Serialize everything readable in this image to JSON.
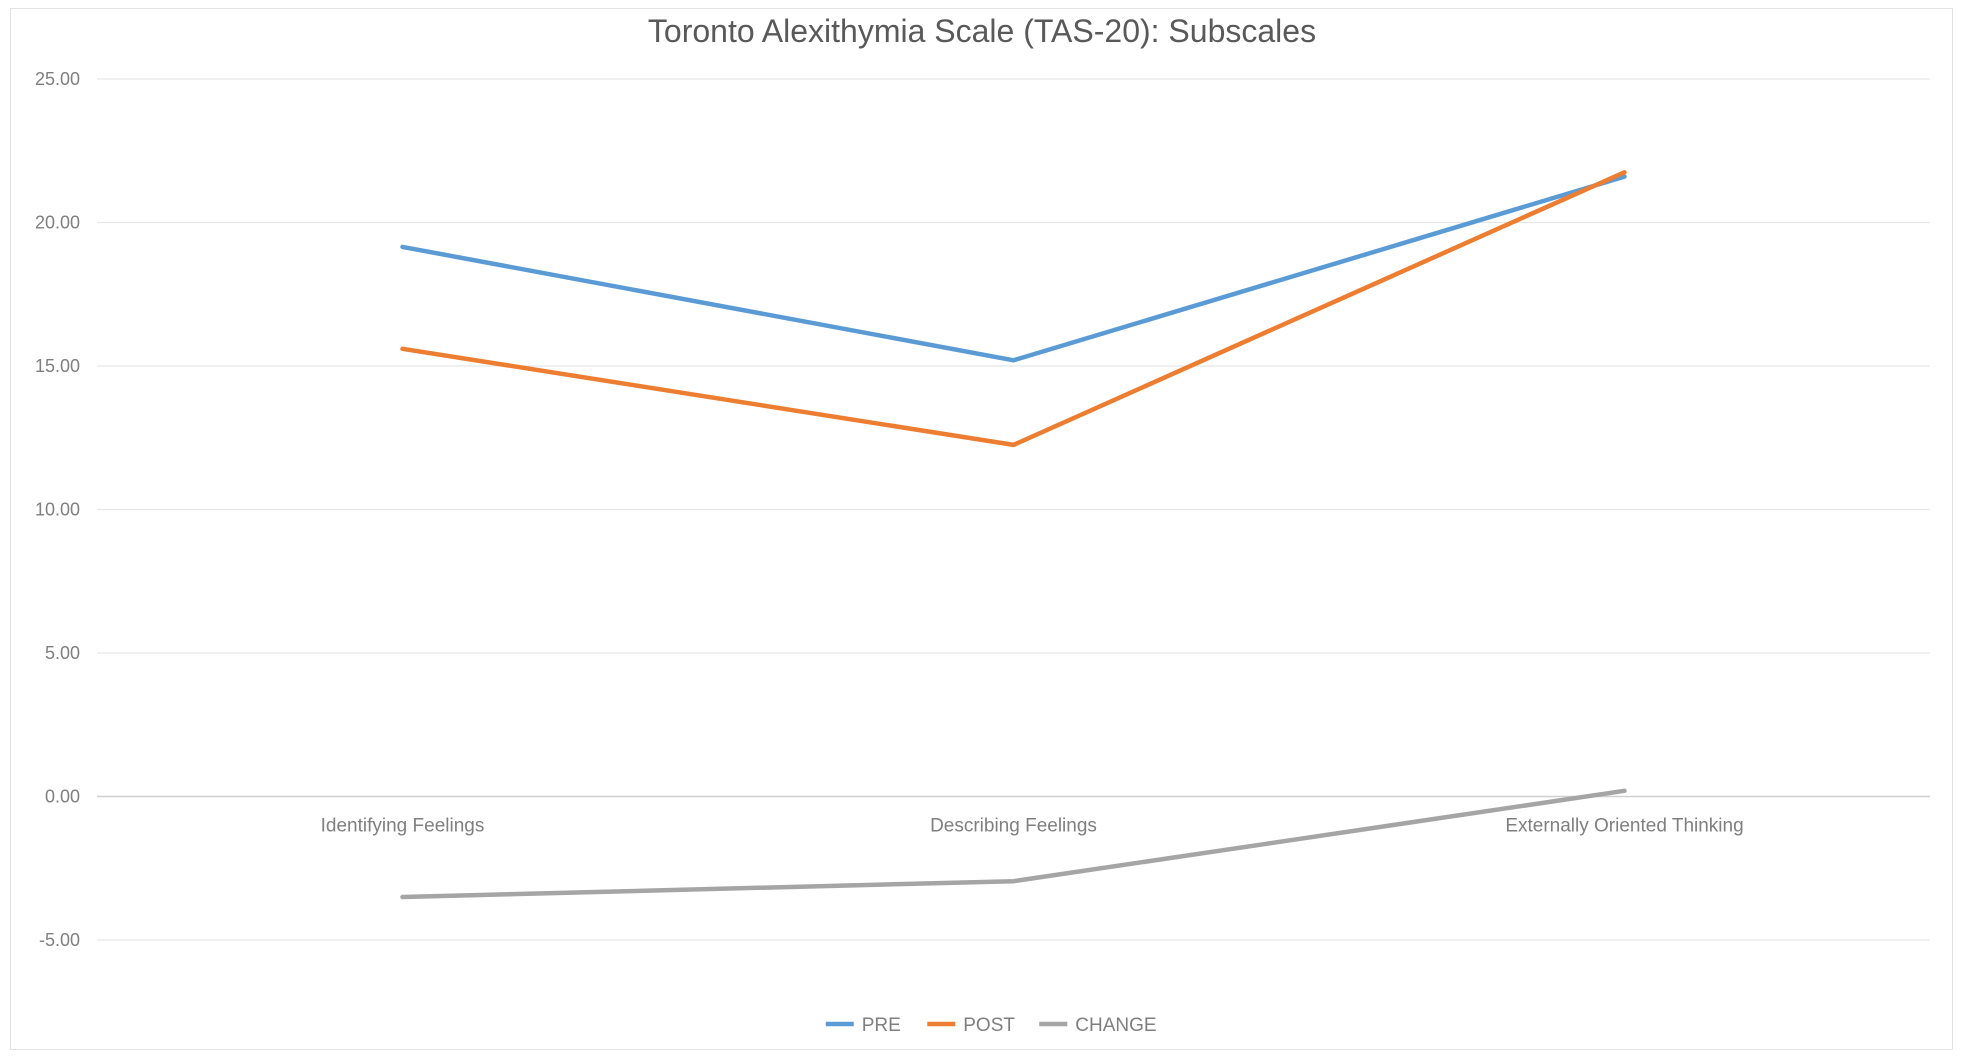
{
  "chart_data": {
    "type": "line",
    "title": "Toronto Alexithymia Scale (TAS-20): Subscales",
    "categories": [
      "Identifying Feelings",
      "Describing Feelings",
      "Externally Oriented Thinking"
    ],
    "series": [
      {
        "name": "PRE",
        "values": [
          19.15,
          15.2,
          21.6
        ],
        "color": "#5b9bd5"
      },
      {
        "name": "POST",
        "values": [
          15.6,
          12.25,
          21.75
        ],
        "color": "#ed7d31"
      },
      {
        "name": "CHANGE",
        "values": [
          -3.5,
          -2.95,
          0.2
        ],
        "color": "#a5a5a5"
      }
    ],
    "ylim": [
      -5,
      25
    ],
    "yticks": [
      25,
      20,
      15,
      10,
      5,
      0,
      -5
    ],
    "ytick_labels": [
      "25.00",
      "20.00",
      "15.00",
      "10.00",
      "5.00",
      "0.00",
      "-5.00"
    ],
    "grid": true,
    "legend_position": "bottom",
    "xlabel": "",
    "ylabel": ""
  }
}
